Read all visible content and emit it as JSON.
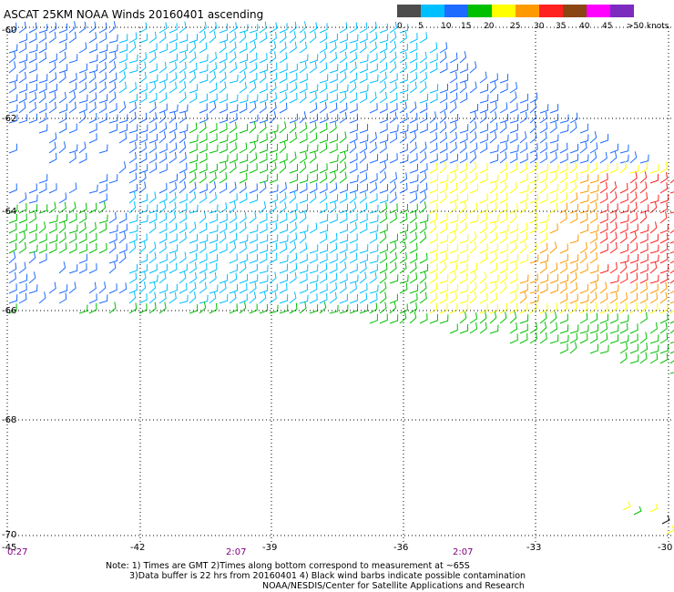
{
  "title": "ASCAT 25KM NOAA Winds 20160401 ascending",
  "legend": {
    "labels": [
      "0",
      "5",
      "10",
      "15",
      "20",
      "25",
      "30",
      "35",
      "40",
      "45",
      ">50 knots"
    ],
    "colors": [
      "#4d4d4d",
      "#00bfff",
      "#1e6cff",
      "#00c000",
      "#ffff00",
      "#ff9900",
      "#ff2020",
      "#8b4513",
      "#ff00ff",
      "#7b2cbf"
    ]
  },
  "map": {
    "lat_labels": [
      "-60",
      "-62",
      "-64",
      "-66",
      "-68",
      "-70"
    ],
    "lon_labels": [
      "-45",
      "-42",
      "-39",
      "-36",
      "-33",
      "-30"
    ],
    "time_labels": [
      "0:27",
      "2:07",
      "2:07"
    ]
  },
  "notes": {
    "line1": "Note: 1) Times are GMT 2)Times along bottom correspond to measurement at ~65S",
    "line2": "3)Data buffer is 22 hrs from 20160401 4) Black wind barbs indicate possible contamination",
    "line3": "NOAA/NESDIS/Center for Satellite Applications and Research"
  }
}
